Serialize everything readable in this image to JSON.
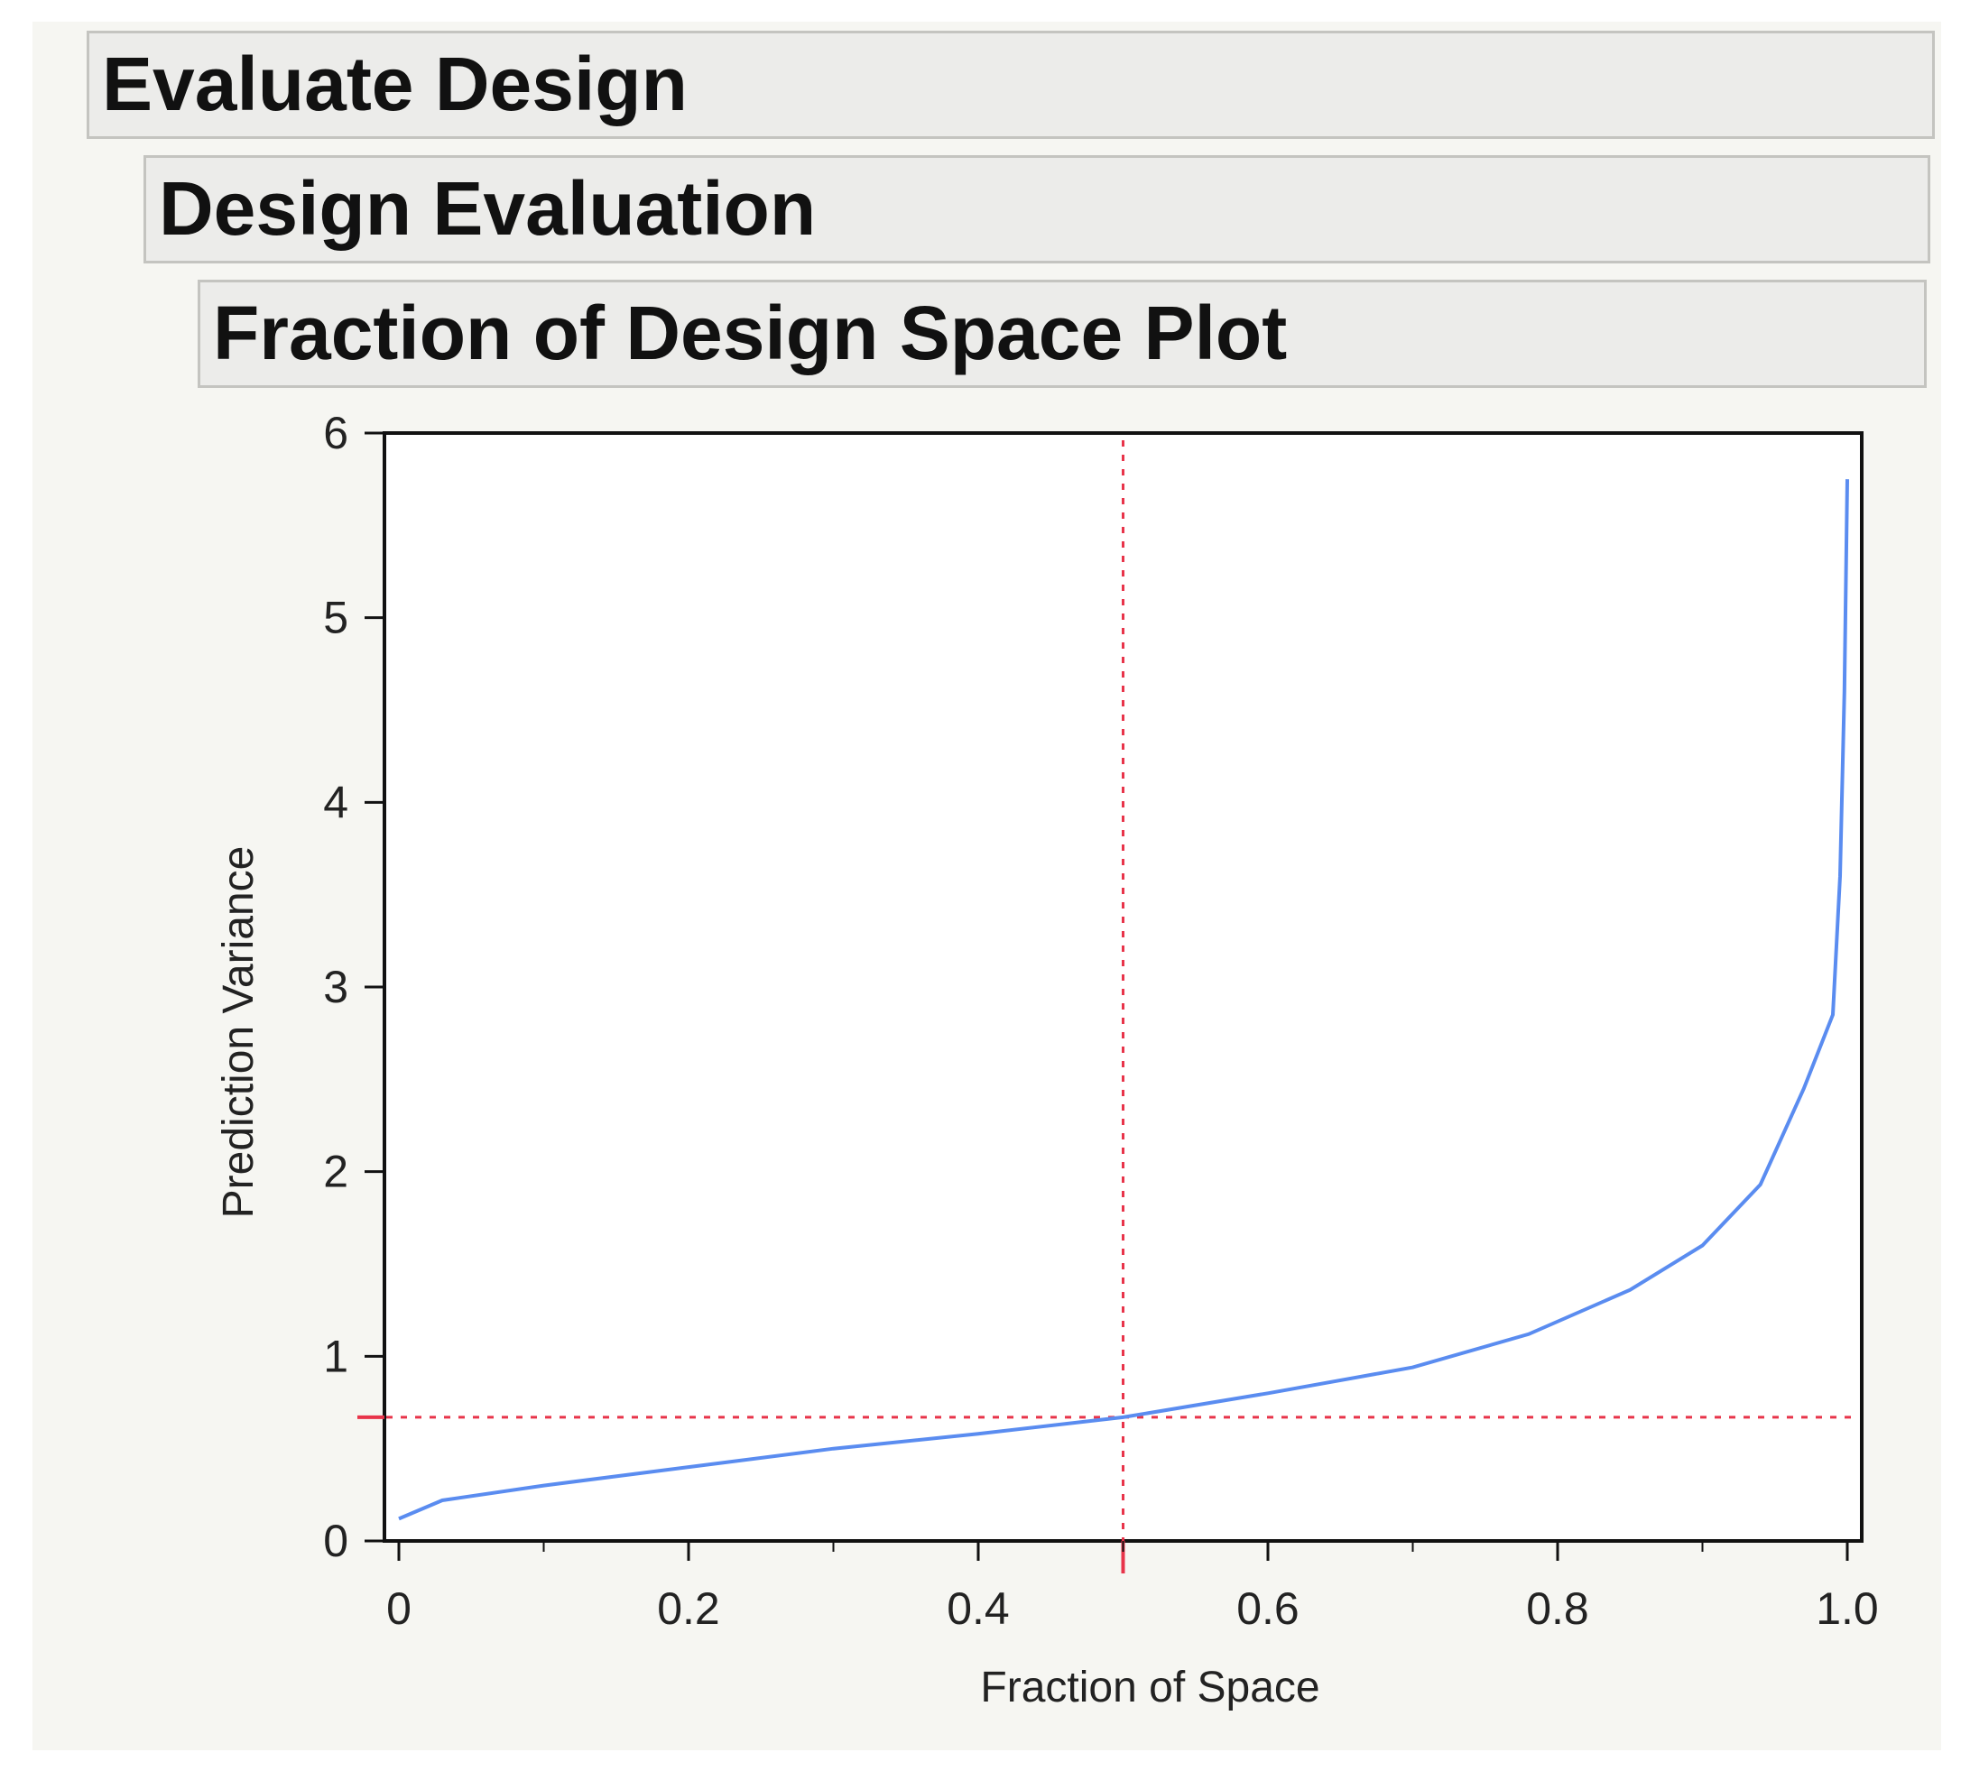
{
  "outline": {
    "evaluate_design": "Evaluate Design",
    "design_evaluation": "Design Evaluation",
    "fraction_plot": "Fraction of Design Space Plot"
  },
  "chart_data": {
    "type": "line",
    "title": "",
    "xlabel": "Fraction of Space",
    "ylabel": "Prediction Variance",
    "xlim": [
      0,
      1.0
    ],
    "ylim": [
      0,
      6
    ],
    "x_ticks": [
      "0",
      "0.2",
      "0.4",
      "0.6",
      "0.8",
      "1.0"
    ],
    "y_ticks": [
      "0",
      "1",
      "2",
      "3",
      "4",
      "5",
      "6"
    ],
    "grid": false,
    "line_color": "#5a8cf0",
    "reference_color": "#e8344a",
    "reference_lines": {
      "x": 0.5,
      "y": 0.67
    },
    "series": [
      {
        "x": [
          0.0,
          0.03,
          0.1,
          0.2,
          0.3,
          0.4,
          0.5,
          0.6,
          0.7,
          0.78,
          0.85,
          0.9,
          0.94,
          0.97,
          0.99,
          0.995,
          0.998,
          1.0
        ],
        "y": [
          0.12,
          0.22,
          0.3,
          0.4,
          0.5,
          0.58,
          0.67,
          0.8,
          0.94,
          1.12,
          1.36,
          1.6,
          1.93,
          2.45,
          2.85,
          3.6,
          4.6,
          5.75
        ]
      }
    ]
  }
}
